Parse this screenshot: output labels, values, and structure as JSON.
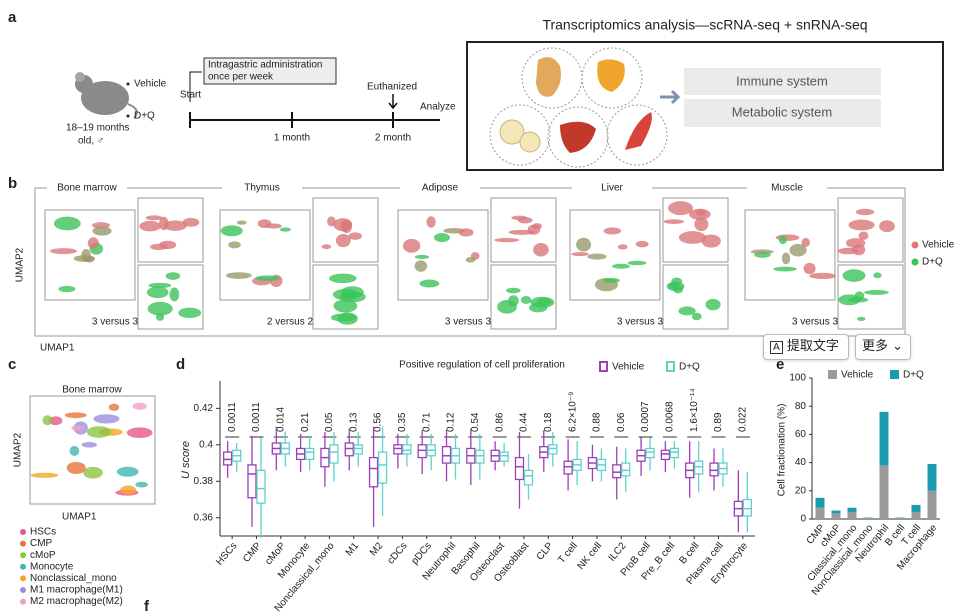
{
  "panel_a": {
    "label": "a",
    "groups": [
      "Vehicle",
      "D+Q"
    ],
    "age": [
      "18–19 months",
      "old, ♂"
    ],
    "treatment": [
      "Intragastric administration",
      "once per week"
    ],
    "start": "Start",
    "month1": "1 month",
    "euthanized": "Euthanized",
    "month2": "2 month",
    "analyze": "Analyze",
    "box_title": "Transcriptomics analysis—scRNA-seq + snRNA-seq",
    "systems": [
      "Immune system",
      "Metabolic system"
    ]
  },
  "panel_b": {
    "label": "b",
    "tissues": [
      "Bone marrow",
      "Thymus",
      "Adipose",
      "Liver",
      "Muscle"
    ],
    "comparisons": [
      "3 versus 3",
      "2 versus 2",
      "3 versus 3",
      "3 versus 3",
      "3 versus 3"
    ],
    "y_label": "UMAP2",
    "x_label": "UMAP1",
    "legend": [
      {
        "name": "Vehicle",
        "color": "#d9777a"
      },
      {
        "name": "D+Q",
        "color": "#3cc35a"
      }
    ]
  },
  "panel_c": {
    "label": "c",
    "title": "Bone marrow",
    "y_label": "UMAP2",
    "x_label": "UMAP1",
    "legend": [
      {
        "name": "HSCs",
        "color": "#e8588a"
      },
      {
        "name": "CMP",
        "color": "#e8743b"
      },
      {
        "name": "cMoP",
        "color": "#8cc63f"
      },
      {
        "name": "Monocyte",
        "color": "#3fb8af"
      },
      {
        "name": "Nonclassical_mono",
        "color": "#f5a623"
      },
      {
        "name": "M1 macrophage(M1)",
        "color": "#9b8ed8"
      },
      {
        "name": "M2 macrophage(M2)",
        "color": "#f0a0c8"
      }
    ]
  },
  "panel_d_label": "d",
  "panel_e_label": "e",
  "panel_f_label": "f",
  "toolbar": {
    "extract": "提取文字",
    "more": "更多"
  },
  "chart_data": [
    {
      "type": "box",
      "title": "Positive regulation of cell proliferation",
      "y_label": "U score",
      "categories": [
        "HSCs",
        "CMP",
        "cMoP",
        "Monocyte",
        "Nonclassical_mono",
        "M1",
        "M2",
        "cDCs",
        "pDCs",
        "Neutrophil",
        "Basophil",
        "Osteoclast",
        "Osteoblast",
        "CLP",
        "T cell",
        "NK cell",
        "ILC2",
        "ProB cell",
        "Pre_B cell",
        "B cell",
        "Plasma cell",
        "Erythrocyte"
      ],
      "pvalues": [
        "0.0011",
        "0.0011",
        "0.014",
        "0.21",
        "0.05",
        "0.13",
        "0.56",
        "0.35",
        "0.71",
        "0.12",
        "0.54",
        "0.86",
        "0.44",
        "0.18",
        "6.2×10⁻⁹",
        "0.88",
        "0.06",
        "0.0007",
        "0.0068",
        "1.6×10⁻¹⁴",
        "0.89",
        "0.022"
      ],
      "ylim": [
        0.35,
        0.435
      ],
      "yticks": [
        0.36,
        0.38,
        0.4,
        0.42
      ],
      "series": [
        {
          "name": "Vehicle",
          "color": "#9c3fb8",
          "whislo": [
            0.382,
            0.355,
            0.386,
            0.385,
            0.377,
            0.386,
            0.355,
            0.387,
            0.384,
            0.38,
            0.378,
            0.386,
            0.365,
            0.385,
            0.375,
            0.38,
            0.37,
            0.383,
            0.385,
            0.371,
            0.375,
            0.352
          ],
          "q1": [
            0.389,
            0.371,
            0.395,
            0.392,
            0.388,
            0.394,
            0.377,
            0.395,
            0.393,
            0.39,
            0.39,
            0.391,
            0.381,
            0.393,
            0.384,
            0.387,
            0.382,
            0.391,
            0.392,
            0.382,
            0.383,
            0.361
          ],
          "median": [
            0.392,
            0.384,
            0.398,
            0.395,
            0.393,
            0.398,
            0.387,
            0.398,
            0.397,
            0.394,
            0.394,
            0.394,
            0.388,
            0.396,
            0.388,
            0.39,
            0.385,
            0.394,
            0.395,
            0.386,
            0.386,
            0.365
          ],
          "q3": [
            0.396,
            0.389,
            0.401,
            0.398,
            0.398,
            0.401,
            0.393,
            0.4,
            0.4,
            0.399,
            0.398,
            0.397,
            0.393,
            0.399,
            0.391,
            0.393,
            0.389,
            0.397,
            0.397,
            0.39,
            0.39,
            0.369
          ],
          "whishi": [
            0.402,
            0.405,
            0.41,
            0.406,
            0.407,
            0.409,
            0.41,
            0.406,
            0.408,
            0.408,
            0.409,
            0.402,
            0.407,
            0.408,
            0.403,
            0.4,
            0.399,
            0.404,
            0.402,
            0.402,
            0.398,
            0.386
          ]
        },
        {
          "name": "D+Q",
          "color": "#5fd3c8",
          "whislo": [
            0.385,
            0.349,
            0.388,
            0.386,
            0.38,
            0.388,
            0.361,
            0.388,
            0.386,
            0.381,
            0.381,
            0.388,
            0.37,
            0.388,
            0.378,
            0.38,
            0.374,
            0.386,
            0.387,
            0.374,
            0.377,
            0.352
          ],
          "q1": [
            0.391,
            0.368,
            0.395,
            0.392,
            0.39,
            0.395,
            0.379,
            0.395,
            0.394,
            0.39,
            0.39,
            0.391,
            0.378,
            0.395,
            0.386,
            0.386,
            0.383,
            0.393,
            0.393,
            0.384,
            0.384,
            0.361
          ],
          "median": [
            0.394,
            0.376,
            0.398,
            0.396,
            0.396,
            0.398,
            0.389,
            0.397,
            0.397,
            0.394,
            0.394,
            0.394,
            0.383,
            0.398,
            0.389,
            0.389,
            0.386,
            0.396,
            0.396,
            0.388,
            0.387,
            0.365
          ],
          "q3": [
            0.397,
            0.386,
            0.401,
            0.398,
            0.4,
            0.4,
            0.396,
            0.4,
            0.4,
            0.398,
            0.397,
            0.396,
            0.386,
            0.4,
            0.392,
            0.392,
            0.39,
            0.398,
            0.398,
            0.391,
            0.39,
            0.37
          ],
          "whishi": [
            0.401,
            0.404,
            0.407,
            0.405,
            0.407,
            0.407,
            0.41,
            0.406,
            0.406,
            0.406,
            0.406,
            0.401,
            0.395,
            0.407,
            0.402,
            0.398,
            0.398,
            0.404,
            0.402,
            0.402,
            0.398,
            0.385
          ]
        }
      ]
    },
    {
      "type": "stacked_bar",
      "y_label": "Cell fractionation (%)",
      "categories": [
        "CMP",
        "cMoP",
        "Classical_mono",
        "NonClassical_mono",
        "Neutrophil",
        "B cell",
        "T cell",
        "Macrophage"
      ],
      "ylim": [
        0,
        100
      ],
      "yticks": [
        0,
        20,
        40,
        60,
        80,
        100
      ],
      "series": [
        {
          "name": "Vehicle",
          "color": "#9a9a9a",
          "values": [
            8,
            4,
            5,
            0.5,
            38,
            0.5,
            5,
            20
          ]
        },
        {
          "name": "D+Q",
          "color": "#1b9bb0",
          "values": [
            7,
            2,
            3,
            0.5,
            38,
            0.5,
            5,
            19
          ]
        }
      ]
    }
  ]
}
